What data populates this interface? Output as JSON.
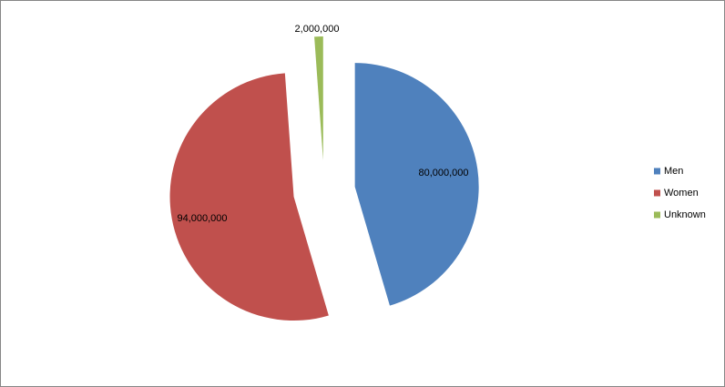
{
  "chart_data": {
    "type": "pie",
    "categories": [
      "Men",
      "Women",
      "Unknown"
    ],
    "values": [
      80000000,
      94000000,
      2000000
    ],
    "value_labels": [
      "80,000,000",
      "94,000,000",
      "2,000,000"
    ],
    "colors": [
      "#4f81bd",
      "#c0504d",
      "#9bbb59"
    ],
    "legend": "right"
  }
}
